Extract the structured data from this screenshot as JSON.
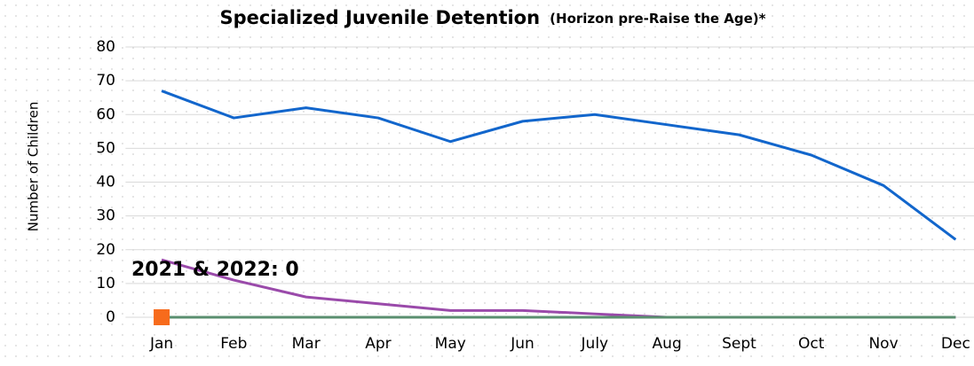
{
  "chart_data": {
    "type": "line",
    "title": "Specialized Juvenile Detention",
    "subtitle": "(Horizon pre-Raise the Age)*",
    "ylabel": "Number of Children",
    "annotation": "2021 & 2022: 0",
    "categories": [
      "Jan",
      "Feb",
      "Mar",
      "Apr",
      "May",
      "Jun",
      "July",
      "Aug",
      "Sept",
      "Oct",
      "Nov",
      "Dec"
    ],
    "series": [
      {
        "color": "#1266cc",
        "values": [
          67,
          59,
          62,
          59,
          52,
          58,
          60,
          57,
          54,
          48,
          39,
          23
        ]
      },
      {
        "color": "#9a4aaa",
        "values": [
          17,
          11,
          6,
          4,
          2,
          2,
          1,
          0,
          0,
          0,
          0,
          0
        ]
      },
      {
        "color": "#5a8f6f",
        "values": [
          0,
          0,
          0,
          0,
          0,
          0,
          0,
          0,
          0,
          0,
          0,
          0
        ]
      },
      {
        "color": "#f76b1c",
        "marker": "square",
        "values": [
          0,
          null,
          null,
          null,
          null,
          null,
          null,
          null,
          null,
          null,
          null,
          null
        ]
      }
    ],
    "ylim": [
      0,
      80
    ],
    "yticks": [
      0,
      10,
      20,
      30,
      40,
      50,
      60,
      70,
      80
    ],
    "grid": true
  }
}
